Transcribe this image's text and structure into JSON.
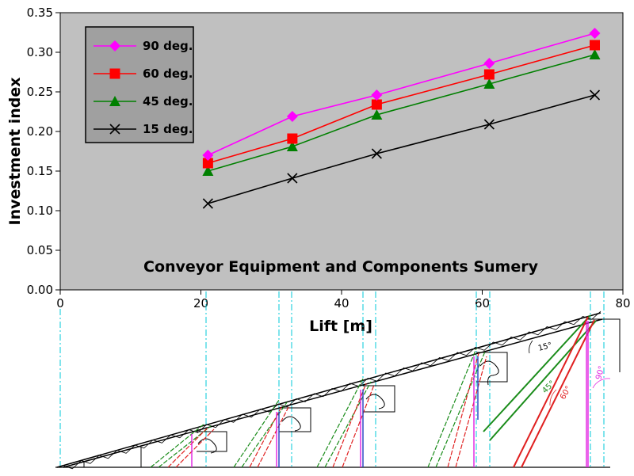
{
  "chart_data": {
    "type": "line",
    "title": "Conveyor Equipment and  Components Sumery",
    "xlabel": "Lift [m]",
    "ylabel": "Investment index",
    "xlim": [
      0,
      80
    ],
    "ylim": [
      0,
      0.35
    ],
    "x_ticks": [
      "0",
      "20",
      "40",
      "60",
      "80"
    ],
    "y_ticks": [
      "0.00",
      "0.05",
      "0.10",
      "0.15",
      "0.20",
      "0.25",
      "0.30",
      "0.35"
    ],
    "x_tick_values": [
      0,
      20,
      40,
      60,
      80
    ],
    "y_tick_values": [
      0,
      0.05,
      0.1,
      0.15,
      0.2,
      0.25,
      0.3,
      0.35
    ],
    "grid": false,
    "legend_position": "top-left",
    "plot_background": "#c0c0c0",
    "legend_background": "#a0a0a0",
    "series": [
      {
        "name": "90 deg.",
        "color": "#ff00ff",
        "marker": "diamond",
        "x": [
          21,
          33,
          45,
          61,
          76
        ],
        "y": [
          0.17,
          0.219,
          0.246,
          0.286,
          0.324
        ]
      },
      {
        "name": "60 deg.",
        "color": "#ff0000",
        "marker": "square",
        "x": [
          21,
          33,
          45,
          61,
          76
        ],
        "y": [
          0.16,
          0.191,
          0.234,
          0.272,
          0.309
        ]
      },
      {
        "name": "45 deg.",
        "color": "#008000",
        "marker": "triangle",
        "x": [
          21,
          33,
          45,
          61,
          76
        ],
        "y": [
          0.15,
          0.181,
          0.221,
          0.26,
          0.297
        ]
      },
      {
        "name": "15 deg.",
        "color": "#000000",
        "marker": "x",
        "x": [
          21,
          33,
          45,
          61,
          76
        ],
        "y": [
          0.109,
          0.141,
          0.172,
          0.209,
          0.246
        ]
      }
    ]
  },
  "diagram": {
    "angle_labels": [
      "15°",
      "45°",
      "60°",
      "90°"
    ]
  }
}
